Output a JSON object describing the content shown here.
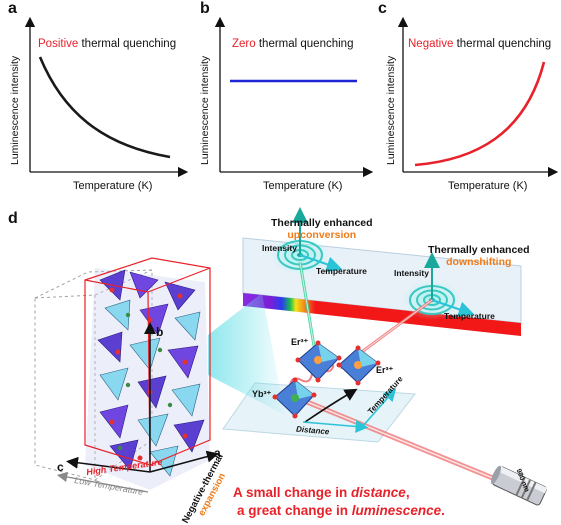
{
  "panels": {
    "a": {
      "letter": "a",
      "ylabel": "Luminescence intensity",
      "xlabel": "Temperature (K)",
      "title_highlight": "Positive",
      "title_rest": " thermal quenching",
      "curve_color": "#1a1a1a"
    },
    "b": {
      "letter": "b",
      "ylabel": "Luminescence intensity",
      "xlabel": "Temperature (K)",
      "title_highlight": "Zero",
      "title_rest": " thermal quenching",
      "curve_color": "#1f24d6"
    },
    "c": {
      "letter": "c",
      "ylabel": "Luminescence intensity",
      "xlabel": "Temperature (K)",
      "title_highlight": "Negative",
      "title_rest": " thermal quenching",
      "curve_color": "#e8222a"
    },
    "d": {
      "letter": "d"
    }
  },
  "diagram": {
    "upconversion_line1": "Thermally enhanced",
    "upconversion_line2": "upconversion",
    "downshifting_line1": "Thermally enhanced",
    "downshifting_line2": "downshifting",
    "intensity_1": "Intensity",
    "temperature_1": "Temperature",
    "intensity_2": "Intensity",
    "temperature_2": "Temperature",
    "er_1": "Er³⁺",
    "er_2": "Er³⁺",
    "yb": "Yb³⁺",
    "distance": "Distance",
    "temperature_3": "Temperature",
    "axis_b": "b",
    "axis_a": "a",
    "axis_c": "c",
    "high_temperature": "High Temperature",
    "low_temperature": "Low Temperature",
    "nte_line1": "Negative-thermal",
    "nte_line2": "expansion",
    "laser_label": "980 nm",
    "caption_line1_a": "A small change in ",
    "caption_line1_b": "distance",
    "caption_line1_c": ",",
    "caption_line2_a": "a great change in ",
    "caption_line2_b": "luminescence",
    "caption_line2_c": ".",
    "accent_red": "#e8222a",
    "accent_cyan": "#2bc4d6",
    "accent_orange": "#f07a18"
  }
}
